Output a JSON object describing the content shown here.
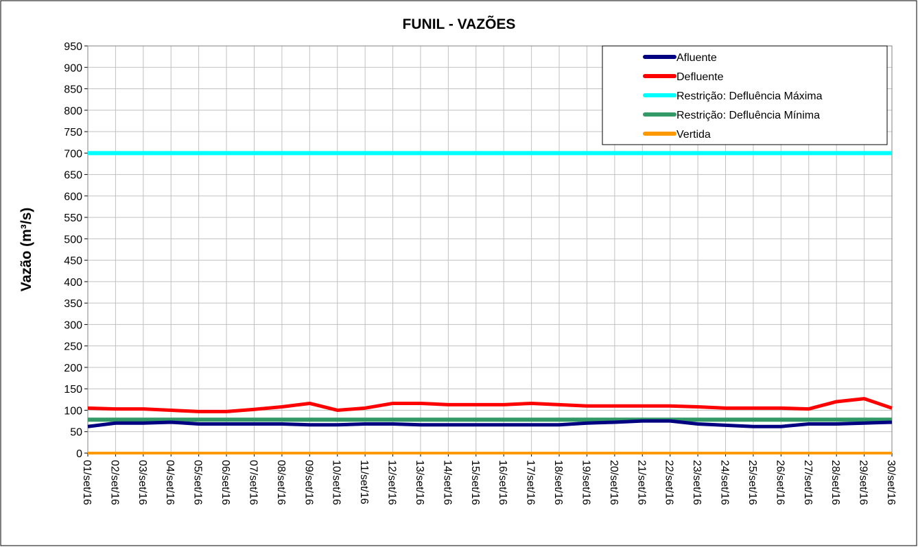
{
  "chart_data": {
    "type": "line",
    "title": "FUNIL - VAZÕES",
    "y_label": "Vazão (m³/s)",
    "categories": [
      "01/set/16",
      "02/set/16",
      "03/set/16",
      "04/set/16",
      "05/set/16",
      "06/set/16",
      "07/set/16",
      "08/set/16",
      "09/set/16",
      "10/set/16",
      "11/set/16",
      "12/set/16",
      "13/set/16",
      "14/set/16",
      "15/set/16",
      "16/set/16",
      "17/set/16",
      "18/set/16",
      "19/set/16",
      "20/set/16",
      "21/set/16",
      "22/set/16",
      "23/set/16",
      "24/set/16",
      "25/set/16",
      "26/set/16",
      "27/set/16",
      "28/set/16",
      "29/set/16",
      "30/set/16"
    ],
    "series": [
      {
        "name": "Afluente",
        "color": "#000080",
        "values": [
          62,
          70,
          70,
          72,
          68,
          68,
          68,
          68,
          66,
          66,
          68,
          68,
          66,
          66,
          66,
          66,
          66,
          66,
          70,
          72,
          75,
          75,
          68,
          65,
          62,
          62,
          68,
          68,
          70,
          72
        ]
      },
      {
        "name": "Defluente",
        "color": "#ff0000",
        "values": [
          105,
          103,
          103,
          100,
          97,
          97,
          102,
          108,
          116,
          100,
          105,
          116,
          116,
          113,
          113,
          113,
          116,
          113,
          110,
          110,
          110,
          110,
          108,
          105,
          105,
          105,
          103,
          120,
          127,
          105
        ]
      },
      {
        "name": "Restrição: Defluência Máxima",
        "color": "#00ffff",
        "values": [
          700,
          700,
          700,
          700,
          700,
          700,
          700,
          700,
          700,
          700,
          700,
          700,
          700,
          700,
          700,
          700,
          700,
          700,
          700,
          700,
          700,
          700,
          700,
          700,
          700,
          700,
          700,
          700,
          700,
          700
        ]
      },
      {
        "name": "Restrição: Defluência Mínima",
        "color": "#339966",
        "values": [
          78,
          78,
          78,
          78,
          78,
          78,
          78,
          78,
          78,
          78,
          78,
          78,
          78,
          78,
          78,
          78,
          78,
          78,
          78,
          78,
          78,
          78,
          78,
          78,
          78,
          78,
          78,
          78,
          78,
          78
        ]
      },
      {
        "name": "Vertida",
        "color": "#ff9900",
        "values": [
          0,
          0,
          0,
          0,
          0,
          0,
          0,
          0,
          0,
          0,
          0,
          0,
          0,
          0,
          0,
          0,
          0,
          0,
          0,
          0,
          0,
          0,
          0,
          0,
          0,
          0,
          0,
          0,
          0,
          0
        ]
      }
    ],
    "ylim": [
      0,
      950
    ],
    "yticks": [
      0,
      50,
      100,
      150,
      200,
      250,
      300,
      350,
      400,
      450,
      500,
      550,
      600,
      650,
      700,
      750,
      800,
      850,
      900,
      950
    ],
    "grid": true,
    "legend": "top-right"
  }
}
